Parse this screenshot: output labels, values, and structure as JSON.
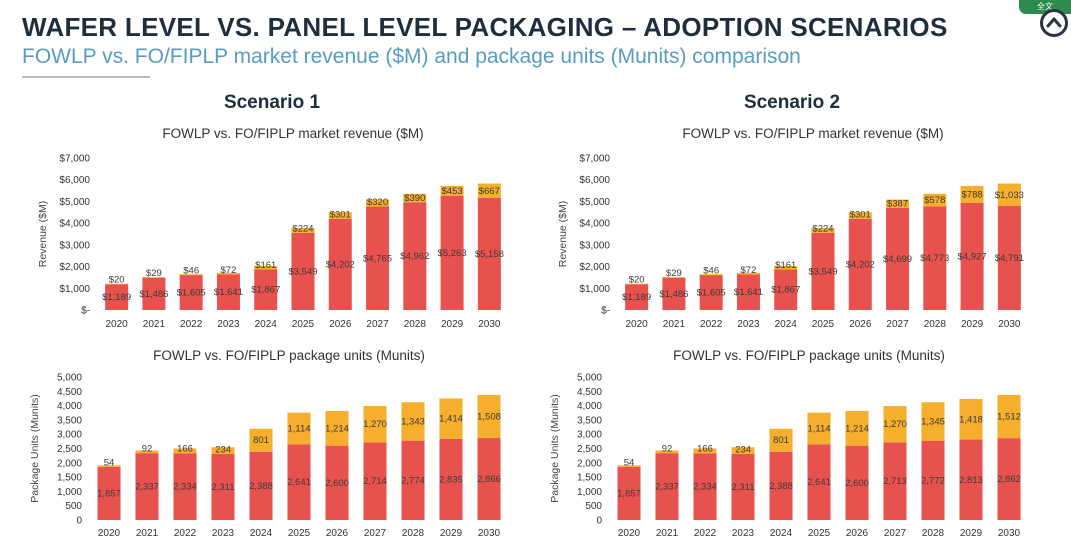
{
  "title": "WAFER LEVEL VS. PANEL LEVEL PACKAGING – ADOPTION SCENARIOS",
  "subtitle": "FOWLP vs. FO/FIPLP market revenue ($M) and package units (Munits) comparison",
  "corner_badge": "全文",
  "colors": {
    "fowlp": "#e8524e",
    "fiplp": "#f6ae2d",
    "heading": "#1f2d3d",
    "subtitle": "#5a9bc0"
  },
  "scenarios": [
    {
      "label": "Scenario 1"
    },
    {
      "label": "Scenario 2"
    }
  ],
  "chart_data": [
    {
      "id": "rev-1",
      "scenario": "Scenario 1",
      "type": "bar",
      "stacked": true,
      "title": "FOWLP vs. FO/FIPLP market revenue ($M)",
      "ylabel": "Revenue ($M)",
      "ylim": [
        0,
        7000
      ],
      "yticks": [
        0,
        1000,
        2000,
        3000,
        4000,
        5000,
        6000,
        7000
      ],
      "ytick_labels": [
        "$-",
        "$1,000",
        "$2,000",
        "$3,000",
        "$4,000",
        "$5,000",
        "$6,000",
        "$7,000"
      ],
      "categories": [
        "2020",
        "2021",
        "2022",
        "2023",
        "2024",
        "2025",
        "2026",
        "2027",
        "2028",
        "2029",
        "2030"
      ],
      "series": [
        {
          "color": "#e8524e",
          "values": [
            1189,
            1486,
            1605,
            1641,
            1867,
            3549,
            4202,
            4765,
            4962,
            5263,
            5158
          ],
          "labels": [
            "$1,189",
            "$1,486",
            "$1,605",
            "$1,641",
            "$1,867",
            "$3,549",
            "$4,202",
            "$4,765",
            "$4,962",
            "$5,263",
            "$5,158"
          ]
        },
        {
          "color": "#f6ae2d",
          "values": [
            20,
            29,
            46,
            72,
            161,
            224,
            301,
            320,
            390,
            453,
            667
          ],
          "labels": [
            "$20",
            "$29",
            "$46",
            "$72",
            "$161",
            "$224",
            "$301",
            "$320",
            "$390",
            "$453",
            "$667"
          ]
        }
      ]
    },
    {
      "id": "rev-2",
      "scenario": "Scenario 2",
      "type": "bar",
      "stacked": true,
      "title": "FOWLP vs. FO/FIPLP market revenue ($M)",
      "ylabel": "Revenue ($M)",
      "ylim": [
        0,
        7000
      ],
      "yticks": [
        0,
        1000,
        2000,
        3000,
        4000,
        5000,
        6000,
        7000
      ],
      "ytick_labels": [
        "$-",
        "$1,000",
        "$2,000",
        "$3,000",
        "$4,000",
        "$5,000",
        "$6,000",
        "$7,000"
      ],
      "categories": [
        "2020",
        "2021",
        "2022",
        "2023",
        "2024",
        "2025",
        "2026",
        "2027",
        "2028",
        "2029",
        "2030"
      ],
      "series": [
        {
          "color": "#e8524e",
          "values": [
            1189,
            1486,
            1605,
            1641,
            1867,
            3549,
            4202,
            4699,
            4773,
            4927,
            4791
          ],
          "labels": [
            "$1,189",
            "$1,486",
            "$1,605",
            "$1,641",
            "$1,867",
            "$3,549",
            "$4,202",
            "$4,699",
            "$4,773",
            "$4,927",
            "$4,791"
          ]
        },
        {
          "color": "#f6ae2d",
          "values": [
            20,
            29,
            46,
            72,
            161,
            224,
            301,
            387,
            578,
            788,
            1033
          ],
          "labels": [
            "$20",
            "$29",
            "$46",
            "$72",
            "$161",
            "$224",
            "$301",
            "$387",
            "$578",
            "$788",
            "$1,033"
          ]
        }
      ]
    },
    {
      "id": "units-1",
      "scenario": "Scenario 1",
      "type": "bar",
      "stacked": true,
      "title": "FOWLP vs. FO/FIPLP package units (Munits)",
      "ylabel": "Package Units (Munits)",
      "ylim": [
        0,
        5000
      ],
      "yticks": [
        0,
        500,
        1000,
        1500,
        2000,
        2500,
        3000,
        3500,
        4000,
        4500,
        5000
      ],
      "ytick_labels": [
        "0",
        "500",
        "1,000",
        "1,500",
        "2,000",
        "2,500",
        "3,000",
        "3,500",
        "4,000",
        "4,500",
        "5,000"
      ],
      "categories": [
        "2020",
        "2021",
        "2022",
        "2023",
        "2024",
        "2025",
        "2026",
        "2027",
        "2028",
        "2029",
        "2030"
      ],
      "series": [
        {
          "color": "#e8524e",
          "values": [
            1857,
            2337,
            2334,
            2311,
            2388,
            2641,
            2600,
            2714,
            2774,
            2835,
            2866
          ],
          "labels": [
            "1,857",
            "2,337",
            "2,334",
            "2,311",
            "2,388",
            "2,641",
            "2,600",
            "2,714",
            "2,774",
            "2,835",
            "2,866"
          ]
        },
        {
          "color": "#f6ae2d",
          "values": [
            54,
            92,
            166,
            234,
            801,
            1114,
            1214,
            1270,
            1343,
            1414,
            1508
          ],
          "labels": [
            "54",
            "92",
            "166",
            "234",
            "801",
            "1,114",
            "1,214",
            "1,270",
            "1,343",
            "1,414",
            "1,508"
          ]
        }
      ]
    },
    {
      "id": "units-2",
      "scenario": "Scenario 2",
      "type": "bar",
      "stacked": true,
      "title": "FOWLP vs. FO/FIPLP package units (Munits)",
      "ylabel": "Package Units (Munits)",
      "ylim": [
        0,
        5000
      ],
      "yticks": [
        0,
        500,
        1000,
        1500,
        2000,
        2500,
        3000,
        3500,
        4000,
        4500,
        5000
      ],
      "ytick_labels": [
        "0",
        "500",
        "1,000",
        "1,500",
        "2,000",
        "2,500",
        "3,000",
        "3,500",
        "4,000",
        "4,500",
        "5,000"
      ],
      "categories": [
        "2020",
        "2021",
        "2022",
        "2023",
        "2024",
        "2025",
        "2026",
        "2027",
        "2028",
        "2029",
        "2030"
      ],
      "series": [
        {
          "color": "#e8524e",
          "values": [
            1857,
            2337,
            2334,
            2311,
            2388,
            2641,
            2600,
            2713,
            2772,
            2813,
            2862
          ],
          "labels": [
            "1,857",
            "2,337",
            "2,334",
            "2,311",
            "2,388",
            "2,641",
            "2,600",
            "2,713",
            "2,772",
            "2,813",
            "2,862"
          ]
        },
        {
          "color": "#f6ae2d",
          "values": [
            54,
            92,
            166,
            234,
            801,
            1114,
            1214,
            1270,
            1345,
            1418,
            1512
          ],
          "labels": [
            "54",
            "92",
            "166",
            "234",
            "801",
            "1,114",
            "1,214",
            "1,270",
            "1,345",
            "1,418",
            "1,512"
          ]
        }
      ]
    }
  ]
}
